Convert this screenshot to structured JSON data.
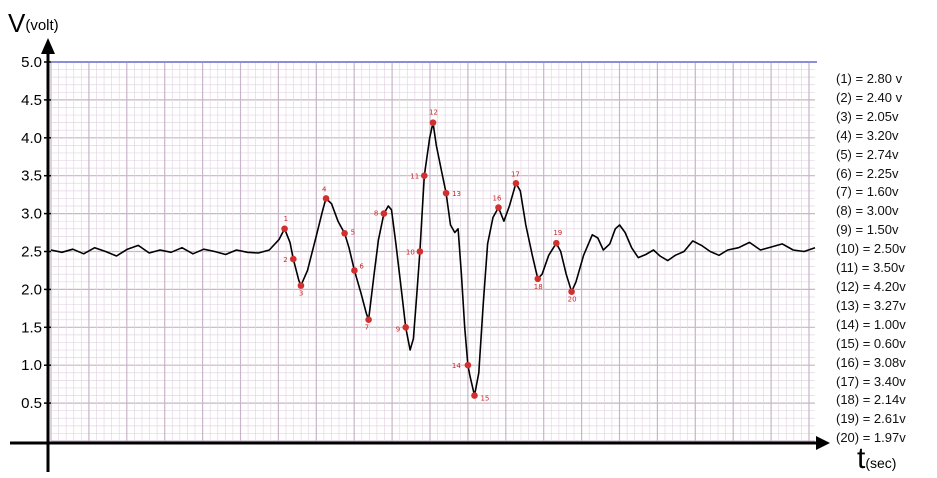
{
  "chart_data": {
    "type": "line",
    "ylabel": "V",
    "ylabel_unit": "(volt)",
    "xlabel": "t",
    "xlabel_unit": "(sec)",
    "ylim": [
      0,
      5.0
    ],
    "yticks": [
      "0.5",
      "1.0",
      "1.5",
      "2.0",
      "2.5",
      "3.0",
      "3.5",
      "4.0",
      "4.5",
      "5.0"
    ],
    "grid": true,
    "trace": [
      [
        0.0,
        2.52
      ],
      [
        1.0,
        2.49
      ],
      [
        2.0,
        2.53
      ],
      [
        3.0,
        2.47
      ],
      [
        4.0,
        2.55
      ],
      [
        5.0,
        2.5
      ],
      [
        6.0,
        2.44
      ],
      [
        7.0,
        2.53
      ],
      [
        8.0,
        2.58
      ],
      [
        9.0,
        2.48
      ],
      [
        10.0,
        2.52
      ],
      [
        11.0,
        2.49
      ],
      [
        12.0,
        2.55
      ],
      [
        13.0,
        2.47
      ],
      [
        14.0,
        2.53
      ],
      [
        15.0,
        2.5
      ],
      [
        16.0,
        2.46
      ],
      [
        17.0,
        2.52
      ],
      [
        18.0,
        2.49
      ],
      [
        19.0,
        2.48
      ],
      [
        20.0,
        2.52
      ],
      [
        20.9,
        2.66
      ],
      [
        21.4,
        2.8
      ],
      [
        21.9,
        2.62
      ],
      [
        22.2,
        2.4
      ],
      [
        22.7,
        2.12
      ],
      [
        22.9,
        2.05
      ],
      [
        23.5,
        2.25
      ],
      [
        24.3,
        2.7
      ],
      [
        24.9,
        3.05
      ],
      [
        25.2,
        3.2
      ],
      [
        25.7,
        3.13
      ],
      [
        26.3,
        2.9
      ],
      [
        26.9,
        2.74
      ],
      [
        27.3,
        2.55
      ],
      [
        27.8,
        2.25
      ],
      [
        28.4,
        1.95
      ],
      [
        28.9,
        1.68
      ],
      [
        29.1,
        1.6
      ],
      [
        29.6,
        2.2
      ],
      [
        30.0,
        2.65
      ],
      [
        30.5,
        3.0
      ],
      [
        30.9,
        3.1
      ],
      [
        31.2,
        3.05
      ],
      [
        31.6,
        2.6
      ],
      [
        32.1,
        2.0
      ],
      [
        32.5,
        1.5
      ],
      [
        32.9,
        1.2
      ],
      [
        33.2,
        1.35
      ],
      [
        33.5,
        1.9
      ],
      [
        33.8,
        2.5
      ],
      [
        34.2,
        3.5
      ],
      [
        34.7,
        4.0
      ],
      [
        35.0,
        4.2
      ],
      [
        35.3,
        3.9
      ],
      [
        35.8,
        3.55
      ],
      [
        36.2,
        3.27
      ],
      [
        36.6,
        2.85
      ],
      [
        37.0,
        2.75
      ],
      [
        37.3,
        2.8
      ],
      [
        37.6,
        2.2
      ],
      [
        37.9,
        1.5
      ],
      [
        38.2,
        1.0
      ],
      [
        38.4,
        0.85
      ],
      [
        38.8,
        0.6
      ],
      [
        39.2,
        0.9
      ],
      [
        39.6,
        1.8
      ],
      [
        40.0,
        2.6
      ],
      [
        40.5,
        2.95
      ],
      [
        41.0,
        3.08
      ],
      [
        41.5,
        2.9
      ],
      [
        42.0,
        3.1
      ],
      [
        42.6,
        3.4
      ],
      [
        43.0,
        3.3
      ],
      [
        43.5,
        2.85
      ],
      [
        44.1,
        2.45
      ],
      [
        44.6,
        2.14
      ],
      [
        45.0,
        2.2
      ],
      [
        45.6,
        2.45
      ],
      [
        46.3,
        2.61
      ],
      [
        46.7,
        2.5
      ],
      [
        47.2,
        2.2
      ],
      [
        47.7,
        1.97
      ],
      [
        48.1,
        2.1
      ],
      [
        48.8,
        2.45
      ],
      [
        49.6,
        2.72
      ],
      [
        50.1,
        2.68
      ],
      [
        50.6,
        2.52
      ],
      [
        51.2,
        2.6
      ],
      [
        51.7,
        2.8
      ],
      [
        52.1,
        2.85
      ],
      [
        52.6,
        2.75
      ],
      [
        53.2,
        2.55
      ],
      [
        53.8,
        2.42
      ],
      [
        54.5,
        2.46
      ],
      [
        55.2,
        2.52
      ],
      [
        55.8,
        2.44
      ],
      [
        56.5,
        2.38
      ],
      [
        57.2,
        2.45
      ],
      [
        58.0,
        2.5
      ],
      [
        58.8,
        2.64
      ],
      [
        59.6,
        2.58
      ],
      [
        60.4,
        2.5
      ],
      [
        61.2,
        2.45
      ],
      [
        62.0,
        2.52
      ],
      [
        63.0,
        2.55
      ],
      [
        64.0,
        2.62
      ],
      [
        65.0,
        2.52
      ],
      [
        66.0,
        2.56
      ],
      [
        67.0,
        2.6
      ],
      [
        68.0,
        2.52
      ],
      [
        69.0,
        2.5
      ],
      [
        70.0,
        2.55
      ]
    ],
    "points": [
      {
        "label": "1",
        "x": 21.4,
        "y": 2.8
      },
      {
        "label": "2",
        "x": 22.2,
        "y": 2.4
      },
      {
        "label": "3",
        "x": 22.9,
        "y": 2.05
      },
      {
        "label": "4",
        "x": 25.2,
        "y": 3.2
      },
      {
        "label": "5",
        "x": 26.9,
        "y": 2.74
      },
      {
        "label": "6",
        "x": 27.8,
        "y": 2.25
      },
      {
        "label": "7",
        "x": 29.1,
        "y": 1.6
      },
      {
        "label": "8",
        "x": 30.5,
        "y": 3.0
      },
      {
        "label": "9",
        "x": 32.5,
        "y": 1.5
      },
      {
        "label": "10",
        "x": 33.8,
        "y": 2.5
      },
      {
        "label": "11",
        "x": 34.2,
        "y": 3.5
      },
      {
        "label": "12",
        "x": 35.0,
        "y": 4.2
      },
      {
        "label": "13",
        "x": 36.2,
        "y": 3.27
      },
      {
        "label": "14",
        "x": 38.2,
        "y": 1.0
      },
      {
        "label": "15",
        "x": 38.8,
        "y": 0.6
      },
      {
        "label": "16",
        "x": 41.0,
        "y": 3.08
      },
      {
        "label": "17",
        "x": 42.6,
        "y": 3.4
      },
      {
        "label": "18",
        "x": 44.6,
        "y": 2.14
      },
      {
        "label": "19",
        "x": 46.3,
        "y": 2.61
      },
      {
        "label": "20",
        "x": 47.7,
        "y": 1.97
      }
    ]
  },
  "legend": [
    "(1) = 2.80 v",
    "(2) = 2.40 v",
    "(3) = 2.05v",
    "(4) = 3.20v",
    "(5) = 2.74v",
    "(6) = 2.25v",
    "(7) = 1.60v",
    "(8) = 3.00v",
    "(9) = 1.50v",
    "(10) = 2.50v",
    "(11) = 3.50v",
    "(12) = 4.20v",
    "(13) = 3.27v",
    "(14) = 1.00v",
    "(15) = 0.60v",
    "(16) = 3.08v",
    "(17) = 3.40v",
    "(18) = 2.14v",
    "(19) = 2.61v",
    "(20) = 1.97v"
  ],
  "colors": {
    "grid_minor": "#e4d6e4",
    "grid_major": "#c9b4c9",
    "trace": "#000000",
    "marker": "#d32f2f",
    "top_line": "#8c8cd8"
  }
}
